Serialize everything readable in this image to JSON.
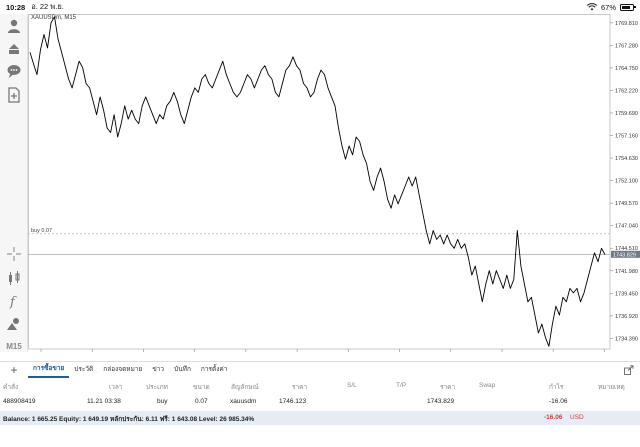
{
  "status_bar": {
    "time": "10:28",
    "date": "อ. 22 พ.ย.",
    "battery": "67%"
  },
  "chart": {
    "symbol_label": "XAUUSDm, M15",
    "timeframe": "M15",
    "order_line_label": "buy 0.07",
    "current_price_label": "1743.829",
    "order_price": 1746.123,
    "current_price": 1743.829
  },
  "chart_data": {
    "type": "line",
    "title": "",
    "ylim": [
      1733.2,
      1770.8
    ],
    "y_ticks": [
      "1769.810",
      "1767.280",
      "1764.750",
      "1762.220",
      "1759.690",
      "1757.160",
      "1754.630",
      "1752.100",
      "1749.570",
      "1747.040",
      "1744.510",
      "1741.980",
      "1739.450",
      "1736.920",
      "1734.390"
    ],
    "x_ticks": [
      "17 Nov 06:15",
      "17 Nov 12:15",
      "17 Nov 18:15",
      "18 Nov 01:15",
      "18 Nov 07:15",
      "18 Nov 13:15",
      "18 Nov 19:15",
      "21 Nov 02:15",
      "21 Nov 08:15",
      "21 Nov 14:15",
      "21 Nov 20:15",
      "22 Nov 03:15"
    ],
    "series": [
      {
        "values": [
          1766.5,
          1765.2,
          1764.0,
          1766.8,
          1768.5,
          1767.0,
          1769.8,
          1770.5,
          1768.0,
          1766.5,
          1765.0,
          1763.5,
          1762.5,
          1764.0,
          1765.5,
          1764.8,
          1763.0,
          1762.5,
          1761.0,
          1759.5,
          1761.5,
          1760.0,
          1758.0,
          1757.5,
          1759.5,
          1757.0,
          1758.5,
          1760.5,
          1759.0,
          1760.0,
          1759.0,
          1758.5,
          1760.5,
          1761.5,
          1760.5,
          1759.5,
          1758.5,
          1759.5,
          1759.0,
          1760.5,
          1761.0,
          1762.0,
          1761.0,
          1759.5,
          1758.5,
          1760.0,
          1761.5,
          1762.5,
          1762.0,
          1763.5,
          1764.0,
          1763.0,
          1762.5,
          1763.5,
          1764.5,
          1765.5,
          1764.0,
          1763.0,
          1762.0,
          1761.5,
          1762.0,
          1763.0,
          1764.0,
          1763.5,
          1762.5,
          1763.5,
          1764.5,
          1765.0,
          1764.0,
          1763.5,
          1762.0,
          1761.5,
          1763.0,
          1764.5,
          1765.0,
          1766.0,
          1765.0,
          1764.5,
          1763.0,
          1762.5,
          1761.5,
          1762.0,
          1763.5,
          1764.5,
          1764.0,
          1762.5,
          1761.5,
          1760.5,
          1758.0,
          1756.0,
          1754.5,
          1756.0,
          1755.0,
          1757.0,
          1756.5,
          1755.0,
          1754.0,
          1752.0,
          1751.0,
          1752.5,
          1753.5,
          1752.0,
          1750.0,
          1749.0,
          1750.5,
          1749.5,
          1750.5,
          1751.5,
          1752.5,
          1751.5,
          1752.5,
          1750.5,
          1748.5,
          1746.5,
          1745.0,
          1746.5,
          1745.5,
          1746.0,
          1745.0,
          1746.0,
          1745.0,
          1744.5,
          1745.5,
          1744.5,
          1745.0,
          1743.5,
          1741.5,
          1742.5,
          1740.5,
          1738.5,
          1740.5,
          1742.0,
          1740.5,
          1742.0,
          1741.0,
          1740.0,
          1741.5,
          1740.0,
          1741.0,
          1746.5,
          1742.5,
          1740.5,
          1738.5,
          1739.0,
          1737.0,
          1735.0,
          1736.0,
          1734.5,
          1733.5,
          1736.0,
          1738.0,
          1737.0,
          1739.0,
          1738.5,
          1740.0,
          1739.5,
          1740.0,
          1738.5,
          1739.5,
          1741.0,
          1742.5,
          1744.0,
          1743.0,
          1744.5,
          1743.8
        ]
      }
    ],
    "grid": false
  },
  "toolbar": {
    "items": [
      "account-icon",
      "trade-icon",
      "chat-icon",
      "add-chart-icon",
      "crosshair-icon",
      "indicators-icon",
      "function-icon",
      "objects-icon"
    ]
  },
  "terminal": {
    "tabs": [
      "การซื้อขาย",
      "ประวัติ",
      "กล่องจดหมาย",
      "ข่าว",
      "บันทึก",
      "การตั้งค่า"
    ],
    "columns": [
      "คำสั่ง",
      "เวลา",
      "ประเภท",
      "ขนาด",
      "สัญลักษณ์",
      "ราคา",
      "S/L",
      "T/P",
      "ราคา",
      "Swap",
      "กำไร",
      "หมายเหตุ"
    ],
    "order": {
      "ticket": "488908419",
      "time": "11.21 03:38",
      "type": "buy",
      "volume": "0.07",
      "symbol": "xauusdm",
      "open_price": "1746.123",
      "current_price": "1743.829",
      "profit": "-16.06"
    },
    "balance_text": "Balance: 1 665.25 Equity: 1 649.19 หลักประกัน: 6.11 ฟรี: 1 643.08 Level: 26 985.34%",
    "total_profit": "-16.06",
    "currency": "USD"
  },
  "colors": {
    "accent": "#1a5ea8",
    "negative": "#d23a3a",
    "line": "#000000"
  }
}
